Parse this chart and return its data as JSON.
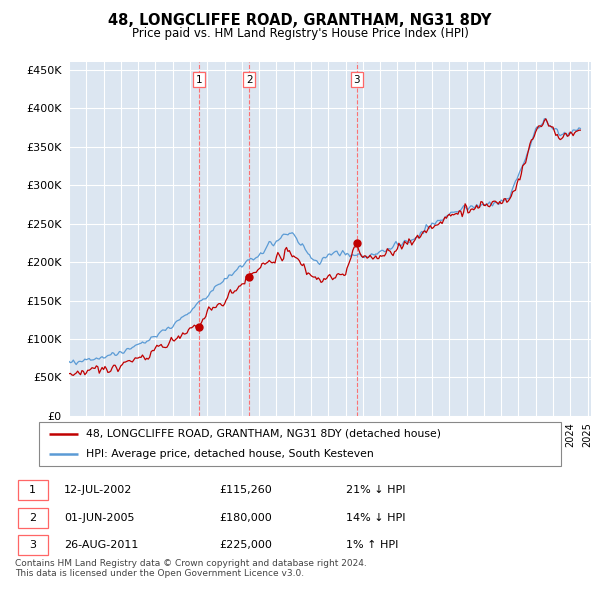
{
  "title": "48, LONGCLIFFE ROAD, GRANTHAM, NG31 8DY",
  "subtitle": "Price paid vs. HM Land Registry's House Price Index (HPI)",
  "legend_line1": "48, LONGCLIFFE ROAD, GRANTHAM, NG31 8DY (detached house)",
  "legend_line2": "HPI: Average price, detached house, South Kesteven",
  "footnote1": "Contains HM Land Registry data © Crown copyright and database right 2024.",
  "footnote2": "This data is licensed under the Open Government Licence v3.0.",
  "transactions": [
    {
      "label": "1",
      "date": "12-JUL-2002",
      "price": "£115,260",
      "hpi": "21% ↓ HPI",
      "year": 2002.54,
      "value": 115260
    },
    {
      "label": "2",
      "date": "01-JUN-2005",
      "price": "£180,000",
      "hpi": "14% ↓ HPI",
      "year": 2005.42,
      "value": 180000
    },
    {
      "label": "3",
      "date": "26-AUG-2011",
      "price": "£225,000",
      "hpi": "1% ↑ HPI",
      "year": 2011.65,
      "value": 225000
    }
  ],
  "hpi_color": "#5b9bd5",
  "price_color": "#c00000",
  "vline_color": "#ff6666",
  "grid_color": "#d0d8e8",
  "bg_color": "#dce6f1",
  "plot_bg": "#dce6f1",
  "ylim": [
    0,
    460000
  ],
  "yticks": [
    0,
    50000,
    100000,
    150000,
    200000,
    250000,
    300000,
    350000,
    400000,
    450000
  ]
}
